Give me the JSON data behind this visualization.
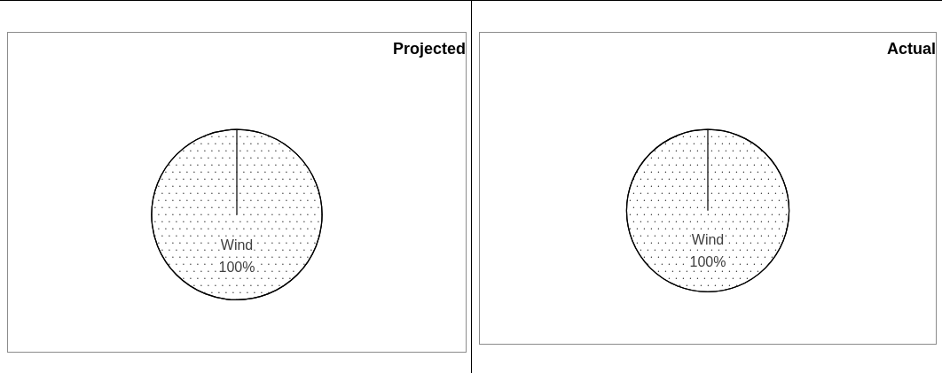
{
  "chart_data": [
    {
      "type": "pie",
      "title": "Projected",
      "categories": [
        "Wind"
      ],
      "values": [
        100
      ],
      "colors": [
        "#ffffff"
      ],
      "value_labels": [
        "100%"
      ],
      "legend": false
    },
    {
      "type": "pie",
      "title": "Actual",
      "categories": [
        "Wind"
      ],
      "values": [
        100
      ],
      "colors": [
        "#ffffff"
      ],
      "value_labels": [
        "100%"
      ],
      "legend": false
    }
  ]
}
